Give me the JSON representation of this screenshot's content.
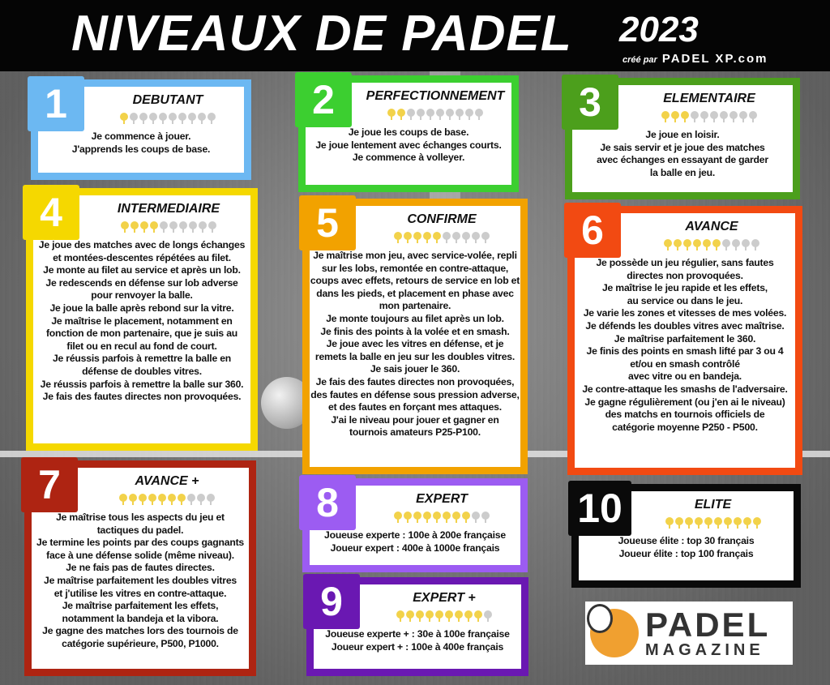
{
  "header": {
    "title": "NIVEAUX DE PADEL",
    "year": "2023",
    "credit_prefix": "créé par",
    "credit_brand": "PADEL XP.com"
  },
  "levels": [
    {
      "number": "1",
      "name": "DEBUTANT",
      "rating": 1,
      "color": "#6cb8f2",
      "lines": [
        "Je commence à jouer.",
        "J'apprends les coups de base."
      ]
    },
    {
      "number": "2",
      "name": "PERFECTIONNEMENT",
      "rating": 2,
      "color": "#3ccf30",
      "lines": [
        "Je joue les coups de base.",
        "Je joue lentement avec échanges courts.",
        "Je commence à volleyer."
      ]
    },
    {
      "number": "3",
      "name": "ELEMENTAIRE",
      "rating": 3,
      "color": "#4c9f1c",
      "lines": [
        "Je joue en loisir.",
        "Je sais servir et je joue des matches",
        "avec échanges en essayant de garder",
        "la balle en jeu."
      ]
    },
    {
      "number": "4",
      "name": "INTERMEDIAIRE",
      "rating": 4,
      "color": "#f5d800",
      "lines": [
        "Je joue des matches avec de longs échanges",
        "et montées-descentes répétées au filet.",
        "Je monte au filet au service et après un lob.",
        "Je redescends en défense sur lob adverse",
        "pour renvoyer la balle.",
        "Je joue la balle après rebond sur la vitre.",
        "Je maîtrise le placement, notamment en",
        "fonction de mon partenaire, que je suis au",
        "filet ou en recul au fond de court.",
        "Je réussis parfois à remettre la balle en",
        "défense de doubles vitres.",
        "Je réussis parfois à remettre la balle sur 360.",
        "Je fais des fautes directes non provoquées."
      ]
    },
    {
      "number": "5",
      "name": "CONFIRME",
      "rating": 5,
      "color": "#f2a200",
      "lines": [
        "Je maîtrise mon jeu, avec service-volée, repli",
        "sur les lobs, remontée en contre-attaque,",
        "coups avec effets, retours de service en lob et",
        "dans les pieds, et placement en phase avec",
        "mon partenaire.",
        "Je monte toujours au filet après un lob.",
        "Je finis des points à la volée et en smash.",
        "Je joue avec les vitres en défense, et je",
        "remets la balle en jeu sur les doubles vitres.",
        "Je sais jouer le 360.",
        "Je fais des fautes directes non provoquées,",
        "des fautes en défense sous pression adverse,",
        "et des fautes en forçant mes attaques.",
        "J'ai le niveau pour jouer et gagner en",
        "tournois amateurs P25-P100."
      ]
    },
    {
      "number": "6",
      "name": "AVANCE",
      "rating": 6,
      "color": "#f24a12",
      "lines": [
        "Je possède un jeu régulier, sans fautes",
        "directes non provoquées.",
        "Je maîtrise le jeu rapide et les effets,",
        "au service ou dans le jeu.",
        "Je varie les zones et vitesses de mes volées.",
        "Je défends les doubles vitres avec maîtrise.",
        "Je maîtrise parfaitement le 360.",
        "Je finis des points en smash lifté par 3 ou 4",
        "et/ou en smash contrôlé",
        "avec vitre ou en bandeja.",
        "Je contre-attaque les smashs de l'adversaire.",
        "Je gagne régulièrement (ou j'en ai le niveau)",
        "des matchs en tournois officiels de",
        "catégorie moyenne P250 - P500."
      ]
    },
    {
      "number": "7",
      "name": "AVANCE +",
      "rating": 7,
      "color": "#ae2412",
      "lines": [
        "Je maîtrise tous les aspects du jeu et",
        "tactiques du padel.",
        "Je termine les points par des coups gagnants",
        "face à une défense solide (même niveau).",
        "Je ne fais pas de fautes directes.",
        "Je maîtrise parfaitement les doubles vitres",
        "et j'utilise les vitres en contre-attaque.",
        "Je maîtrise parfaitement les effets,",
        "notamment la bandeja et la vibora.",
        "Je gagne des matches lors des tournois de",
        "catégorie supérieure, P500, P1000."
      ]
    },
    {
      "number": "8",
      "name": "EXPERT",
      "rating": 8,
      "color": "#9c5cf2",
      "lines": [
        "Joueuse experte : 100e à 200e française",
        "Joueur expert : 400e à 1000e français"
      ]
    },
    {
      "number": "9",
      "name": "EXPERT +",
      "rating": 9,
      "color": "#6a18b2",
      "lines": [
        "Joueuse experte + : 30e à 100e française",
        "Joueur expert + : 100e à 400e français"
      ]
    },
    {
      "number": "10",
      "name": "ELITE",
      "rating": 10,
      "color": "#0a0a0a",
      "lines": [
        "Joueuse élite : top 30 français",
        "Joueur élite : top 100 français"
      ]
    }
  ],
  "logo": {
    "line1": "PADEL",
    "line2": "MAGAZINE"
  }
}
